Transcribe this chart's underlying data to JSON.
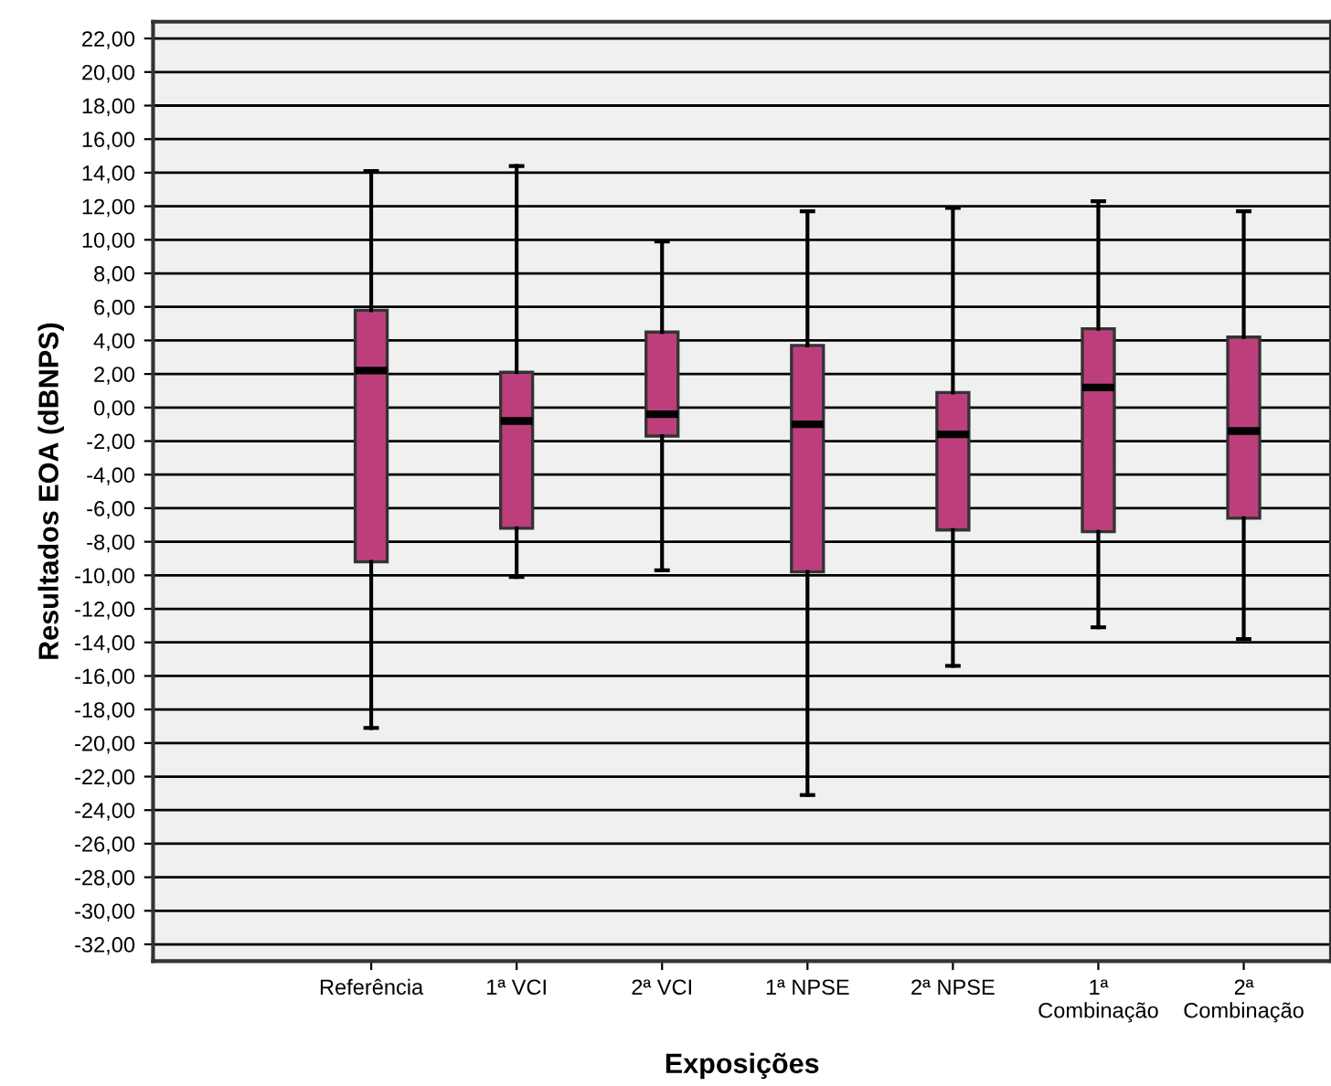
{
  "chart_data": {
    "type": "box",
    "xlabel": "Exposições",
    "ylabel": "Resultados EOA (dBNPS)",
    "categories": [
      "Referência",
      "1ª VCI",
      "2ª VCI",
      "1ª NPSE",
      "2ª NPSE",
      "1ª\nCombinação",
      "2ª\nCombinação"
    ],
    "color": "#bc3f7c",
    "boxes": [
      {
        "low": -19.1,
        "q1": -9.2,
        "median": 2.2,
        "q3": 5.8,
        "high": 14.1
      },
      {
        "low": -10.1,
        "q1": -7.2,
        "median": -0.8,
        "q3": 2.1,
        "high": 14.4
      },
      {
        "low": -9.7,
        "q1": -1.7,
        "median": -0.4,
        "q3": 4.5,
        "high": 9.9
      },
      {
        "low": -23.1,
        "q1": -9.8,
        "median": -1.0,
        "q3": 3.7,
        "high": 11.7
      },
      {
        "low": -15.4,
        "q1": -7.3,
        "median": -1.6,
        "q3": 0.9,
        "high": 11.9
      },
      {
        "low": -13.1,
        "q1": -7.4,
        "median": 1.2,
        "q3": 4.7,
        "high": 12.3
      },
      {
        "low": -13.8,
        "q1": -6.6,
        "median": -1.4,
        "q3": 4.2,
        "high": 11.7
      }
    ],
    "ylim": [
      -33,
      23
    ],
    "yticks": [
      {
        "value": 22,
        "label": "22,00"
      },
      {
        "value": 20,
        "label": "20,00"
      },
      {
        "value": 18,
        "label": "18,00"
      },
      {
        "value": 16,
        "label": "16,00"
      },
      {
        "value": 14,
        "label": "14,00"
      },
      {
        "value": 12,
        "label": "12,00"
      },
      {
        "value": 10,
        "label": "10,00"
      },
      {
        "value": 8,
        "label": "8,00"
      },
      {
        "value": 6,
        "label": "6,00"
      },
      {
        "value": 4,
        "label": "4,00"
      },
      {
        "value": 2,
        "label": "2,00"
      },
      {
        "value": 0,
        "label": "0,00"
      },
      {
        "value": -2,
        "label": "-2,00"
      },
      {
        "value": -4,
        "label": "-4,00"
      },
      {
        "value": -6,
        "label": "-6,00"
      },
      {
        "value": -8,
        "label": "-8,00"
      },
      {
        "value": -10,
        "label": "-10,00"
      },
      {
        "value": -12,
        "label": "-12,00"
      },
      {
        "value": -14,
        "label": "-14,00"
      },
      {
        "value": -16,
        "label": "-16,00"
      },
      {
        "value": -18,
        "label": "-18,00"
      },
      {
        "value": -20,
        "label": "-20,00"
      },
      {
        "value": -22,
        "label": "-22,00"
      },
      {
        "value": -24,
        "label": "-24,00"
      },
      {
        "value": -26,
        "label": "-26,00"
      },
      {
        "value": -28,
        "label": "-28,00"
      },
      {
        "value": -30,
        "label": "-30,00"
      },
      {
        "value": -32,
        "label": "-32,00"
      }
    ],
    "grid": "y",
    "legend": false
  }
}
